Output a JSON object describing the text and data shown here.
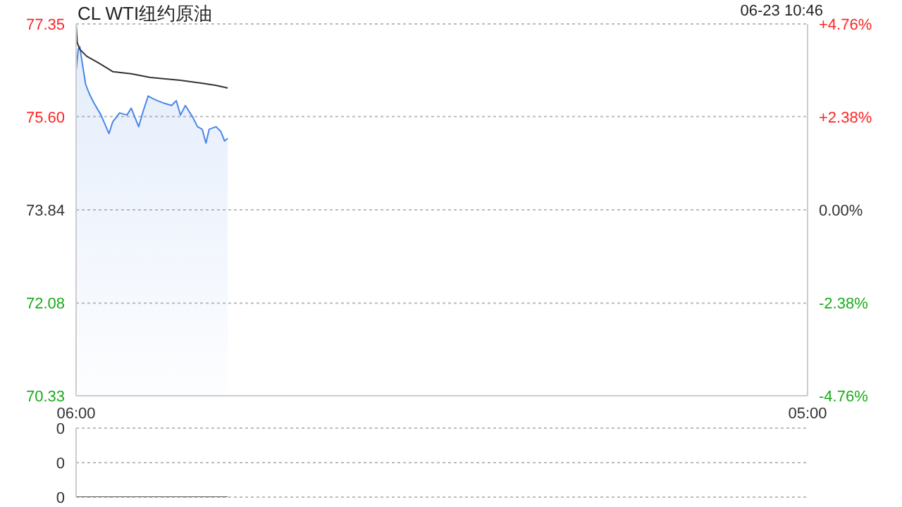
{
  "chart_data": [
    {
      "type": "area",
      "title": "CL WTI纽约原油",
      "annotations": [
        "06-23 10:46"
      ],
      "xlim": [
        "--06-23T06:00",
        "--06-24T05:00"
      ],
      "xticks": [
        {
          "value": "--06-23T06:00",
          "label": "06:00"
        },
        {
          "value": "--06-24T05:00",
          "label": "05:00"
        }
      ],
      "ylim": [
        70.33,
        77.35
      ],
      "yticks": [
        70.33,
        72.08,
        73.84,
        {
          "value": 75.6,
          "label": "75.60"
        },
        77.35
      ],
      "y2lim": [
        -4.76,
        4.76
      ],
      "y2ticks": [
        {
          "value": -4.76,
          "label": "-4.76%"
        },
        {
          "value": -2.38,
          "label": "-2.38%"
        },
        {
          "value": 0,
          "label": "0.00%"
        },
        {
          "value": 2.38,
          "label": "+2.38%"
        },
        {
          "value": 4.76,
          "label": "+4.76%"
        }
      ],
      "grid": "y",
      "legend": false,
      "series": [
        {
          "color": "#4a86e8",
          "x": [
            "--06-23T06:00",
            "--06-23T06:04",
            "--06-23T06:07",
            "--06-23T06:11",
            "--06-23T06:18",
            "--06-23T06:25",
            "--06-23T06:34",
            "--06-23T06:47",
            "--06-23T07:02",
            "--06-23T07:09",
            "--06-23T07:22",
            "--06-23T07:36",
            "--06-23T07:44",
            "--06-23T07:58",
            "--06-23T08:07",
            "--06-23T08:16",
            "--06-23T08:25",
            "--06-23T08:34",
            "--06-23T08:47",
            "--06-23T09:00",
            "--06-23T09:09",
            "--06-23T09:17",
            "--06-23T09:26",
            "--06-23T09:40",
            "--06-23T09:49",
            "--06-23T09:58",
            "--06-23T10:05",
            "--06-23T10:11",
            "--06-23T10:24",
            "--06-23T10:33",
            "--06-23T10:40",
            "--06-23T10:46"
          ],
          "values": [
            76.47,
            76.87,
            76.92,
            76.65,
            76.21,
            76.03,
            75.85,
            75.63,
            75.28,
            75.5,
            75.67,
            75.63,
            75.76,
            75.41,
            75.72,
            75.99,
            75.94,
            75.9,
            75.85,
            75.81,
            75.9,
            75.63,
            75.81,
            75.59,
            75.41,
            75.36,
            75.1,
            75.36,
            75.41,
            75.32,
            75.14,
            75.19
          ]
        },
        {
          "type": "line",
          "color": "#333333",
          "x": [
            "--06-23T06:00",
            "--06-23T06:02",
            "--06-23T06:07",
            "--06-23T06:20",
            "--06-23T06:43",
            "--06-23T07:09",
            "--06-23T07:44",
            "--06-23T08:20",
            "--06-23T09:13",
            "--06-23T09:58",
            "--06-23T10:24",
            "--06-23T10:46"
          ],
          "values": [
            77.35,
            77.0,
            76.87,
            76.74,
            76.61,
            76.45,
            76.41,
            76.34,
            76.29,
            76.23,
            76.19,
            76.14
          ]
        }
      ]
    },
    {
      "type": "line",
      "xlim": [
        "--06-23T06:00",
        "--06-24T05:00"
      ],
      "ylim": [
        0,
        0.4
      ],
      "yticks": [
        {
          "value": 0,
          "label": "0"
        },
        {
          "value": 0.2,
          "label": "0"
        },
        {
          "value": 0.4,
          "label": "0"
        }
      ],
      "tick_labels": "y",
      "grid": "y",
      "legend": false,
      "series": [
        {
          "color": "#555555",
          "x": [
            "--06-23T06:00",
            "--06-23T10:46"
          ],
          "values": [
            0,
            0
          ]
        }
      ]
    }
  ]
}
